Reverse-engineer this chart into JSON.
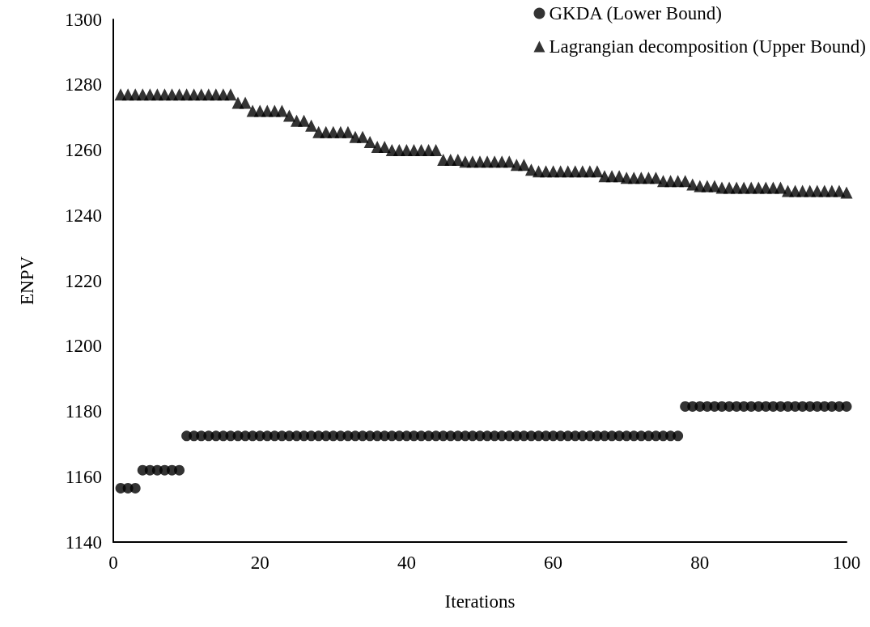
{
  "chart_data": {
    "type": "scatter",
    "xlabel": "Iterations",
    "ylabel": "ENPV",
    "x": [
      1,
      2,
      3,
      4,
      5,
      6,
      7,
      8,
      9,
      10,
      11,
      12,
      13,
      14,
      15,
      16,
      17,
      18,
      19,
      20,
      21,
      22,
      23,
      24,
      25,
      26,
      27,
      28,
      29,
      30,
      31,
      32,
      33,
      34,
      35,
      36,
      37,
      38,
      39,
      40,
      41,
      42,
      43,
      44,
      45,
      46,
      47,
      48,
      49,
      50,
      51,
      52,
      53,
      54,
      55,
      56,
      57,
      58,
      59,
      60,
      61,
      62,
      63,
      64,
      65,
      66,
      67,
      68,
      69,
      70,
      71,
      72,
      73,
      74,
      75,
      76,
      77,
      78,
      79,
      80,
      81,
      82,
      83,
      84,
      85,
      86,
      87,
      88,
      89,
      90,
      91,
      92,
      93,
      94,
      95,
      96,
      97,
      98,
      99,
      100
    ],
    "xlim": [
      0,
      100
    ],
    "xticks": [
      0,
      20,
      40,
      60,
      80,
      100
    ],
    "ylim": [
      1140,
      1300
    ],
    "yticks": [
      1140,
      1160,
      1180,
      1200,
      1220,
      1240,
      1260,
      1280,
      1300
    ],
    "grid": false,
    "legend": "top right",
    "series": [
      {
        "name": "GKDA (Lower Bound)",
        "color": "#000000",
        "marker": "circle",
        "values": [
          1156.5,
          1156.5,
          1156.5,
          1162,
          1162,
          1162,
          1162,
          1162,
          1162,
          1172.5,
          1172.5,
          1172.5,
          1172.5,
          1172.5,
          1172.5,
          1172.5,
          1172.5,
          1172.5,
          1172.5,
          1172.5,
          1172.5,
          1172.5,
          1172.5,
          1172.5,
          1172.5,
          1172.5,
          1172.5,
          1172.5,
          1172.5,
          1172.5,
          1172.5,
          1172.5,
          1172.5,
          1172.5,
          1172.5,
          1172.5,
          1172.5,
          1172.5,
          1172.5,
          1172.5,
          1172.5,
          1172.5,
          1172.5,
          1172.5,
          1172.5,
          1172.5,
          1172.5,
          1172.5,
          1172.5,
          1172.5,
          1172.5,
          1172.5,
          1172.5,
          1172.5,
          1172.5,
          1172.5,
          1172.5,
          1172.5,
          1172.5,
          1172.5,
          1172.5,
          1172.5,
          1172.5,
          1172.5,
          1172.5,
          1172.5,
          1172.5,
          1172.5,
          1172.5,
          1172.5,
          1172.5,
          1172.5,
          1172.5,
          1172.5,
          1172.5,
          1172.5,
          1172.5,
          1181.5,
          1181.5,
          1181.5,
          1181.5,
          1181.5,
          1181.5,
          1181.5,
          1181.5,
          1181.5,
          1181.5,
          1181.5,
          1181.5,
          1181.5,
          1181.5,
          1181.5,
          1181.5,
          1181.5,
          1181.5,
          1181.5,
          1181.5,
          1181.5,
          1181.5,
          1181.5
        ]
      },
      {
        "name": "Lagrangian decomposition (Upper Bound)",
        "color": "#000000",
        "marker": "triangle",
        "values": [
          1277,
          1277,
          1277,
          1277,
          1277,
          1277,
          1277,
          1277,
          1277,
          1277,
          1277,
          1277,
          1277,
          1277,
          1277,
          1277,
          1274.5,
          1274.5,
          1272,
          1272,
          1272,
          1272,
          1272,
          1270.5,
          1269,
          1269,
          1267.5,
          1265.5,
          1265.5,
          1265.5,
          1265.5,
          1265.5,
          1264,
          1264,
          1262.5,
          1261,
          1261,
          1260,
          1260,
          1260,
          1260,
          1260,
          1260,
          1260,
          1257,
          1257,
          1257,
          1256.5,
          1256.5,
          1256.5,
          1256.5,
          1256.5,
          1256.5,
          1256.5,
          1255.5,
          1255.5,
          1254,
          1253.5,
          1253.5,
          1253.5,
          1253.5,
          1253.5,
          1253.5,
          1253.5,
          1253.5,
          1253.5,
          1252,
          1252,
          1252,
          1251.5,
          1251.5,
          1251.5,
          1251.5,
          1251.5,
          1250.5,
          1250.5,
          1250.5,
          1250.5,
          1249.5,
          1249,
          1249,
          1249,
          1248.5,
          1248.5,
          1248.5,
          1248.5,
          1248.5,
          1248.5,
          1248.5,
          1248.5,
          1248.5,
          1247.5,
          1247.5,
          1247.5,
          1247.5,
          1247.5,
          1247.5,
          1247.5,
          1247.5,
          1247
        ]
      }
    ]
  }
}
